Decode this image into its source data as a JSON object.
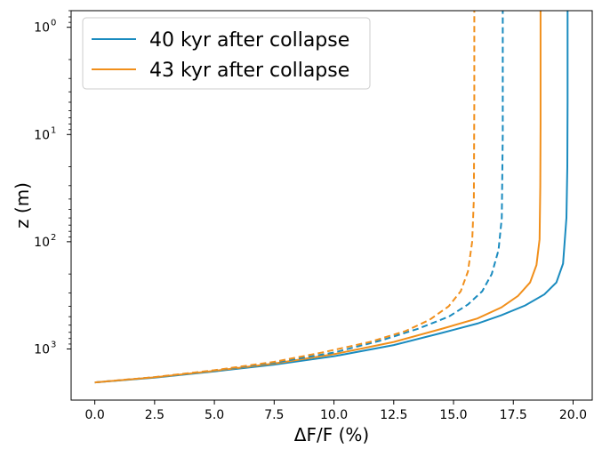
{
  "chart_data": {
    "type": "line",
    "xlabel": "ΔF/F (%)",
    "ylabel": "z (m)",
    "y_scale": "log",
    "y_inverted": true,
    "xlim": [
      -0.99,
      20.8
    ],
    "ylim": [
      3000,
      0.7
    ],
    "x_ticks": [
      {
        "value": 0.0,
        "label": "0.0"
      },
      {
        "value": 2.5,
        "label": "2.5"
      },
      {
        "value": 5.0,
        "label": "5.0"
      },
      {
        "value": 7.5,
        "label": "7.5"
      },
      {
        "value": 10.0,
        "label": "10.0"
      },
      {
        "value": 12.5,
        "label": "12.5"
      },
      {
        "value": 15.0,
        "label": "15.0"
      },
      {
        "value": 17.5,
        "label": "17.5"
      },
      {
        "value": 20.0,
        "label": "20.0"
      }
    ],
    "y_ticks": [
      {
        "value": 1,
        "base": "10",
        "exp": "0"
      },
      {
        "value": 10,
        "base": "10",
        "exp": "1"
      },
      {
        "value": 100,
        "base": "10",
        "exp": "2"
      },
      {
        "value": 1000,
        "base": "10",
        "exp": "3"
      }
    ],
    "legend_position": "top-left",
    "grid": false,
    "series": [
      {
        "name": "40 kyr after collapse",
        "color": "#1a8bbf",
        "dash": "solid",
        "in_legend": true,
        "points": [
          [
            0.0,
            2050
          ],
          [
            2.5,
            1850
          ],
          [
            5.0,
            1620
          ],
          [
            7.5,
            1400
          ],
          [
            10.0,
            1170
          ],
          [
            12.5,
            920
          ],
          [
            14.5,
            710
          ],
          [
            16.0,
            580
          ],
          [
            17.0,
            485
          ],
          [
            18.0,
            393
          ],
          [
            18.8,
            310
          ],
          [
            19.3,
            240
          ],
          [
            19.58,
            160
          ],
          [
            19.72,
            60
          ],
          [
            19.76,
            20
          ],
          [
            19.77,
            5
          ],
          [
            19.77,
            0.7
          ]
        ]
      },
      {
        "name": "43 kyr after collapse",
        "color": "#f18f1b",
        "dash": "solid",
        "in_legend": true,
        "points": [
          [
            0.0,
            2050
          ],
          [
            2.5,
            1840
          ],
          [
            5.0,
            1600
          ],
          [
            7.5,
            1370
          ],
          [
            10.0,
            1120
          ],
          [
            12.5,
            860
          ],
          [
            14.5,
            650
          ],
          [
            16.0,
            520
          ],
          [
            17.0,
            410
          ],
          [
            17.7,
            320
          ],
          [
            18.2,
            240
          ],
          [
            18.47,
            165
          ],
          [
            18.6,
            95
          ],
          [
            18.63,
            30
          ],
          [
            18.64,
            8
          ],
          [
            18.64,
            0.7
          ]
        ]
      },
      {
        "name": "",
        "color": "#1a8bbf",
        "dash": "dashed",
        "in_legend": false,
        "points": [
          [
            0.0,
            2050
          ],
          [
            2.5,
            1835
          ],
          [
            5.0,
            1590
          ],
          [
            7.5,
            1345
          ],
          [
            10.0,
            1080
          ],
          [
            12.0,
            830
          ],
          [
            13.5,
            650
          ],
          [
            14.8,
            500
          ],
          [
            15.6,
            385
          ],
          [
            16.2,
            290
          ],
          [
            16.6,
            200
          ],
          [
            16.88,
            120
          ],
          [
            17.02,
            60
          ],
          [
            17.06,
            10
          ],
          [
            17.06,
            0.7
          ]
        ]
      },
      {
        "name": "",
        "color": "#f18f1b",
        "dash": "dashed",
        "in_legend": false,
        "points": [
          [
            0.0,
            2050
          ],
          [
            2.5,
            1830
          ],
          [
            5.0,
            1580
          ],
          [
            7.5,
            1320
          ],
          [
            9.5,
            1080
          ],
          [
            11.5,
            860
          ],
          [
            13.0,
            680
          ],
          [
            14.0,
            535
          ],
          [
            14.8,
            400
          ],
          [
            15.3,
            290
          ],
          [
            15.6,
            190
          ],
          [
            15.78,
            100
          ],
          [
            15.85,
            40
          ],
          [
            15.87,
            5
          ],
          [
            15.87,
            0.7
          ]
        ]
      }
    ]
  }
}
